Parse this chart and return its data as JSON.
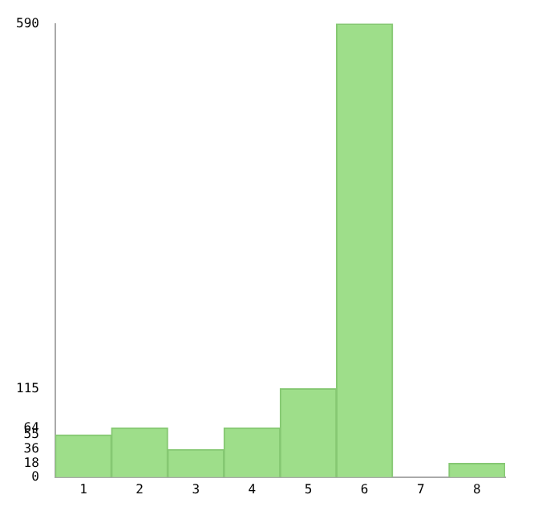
{
  "chart_data": {
    "type": "bar",
    "categories": [
      "1",
      "2",
      "3",
      "4",
      "5",
      "6",
      "7",
      "8"
    ],
    "values": [
      55,
      64,
      36,
      64,
      115,
      590,
      0,
      18
    ],
    "color": "#9ede8a",
    "ylim": [
      0,
      590
    ],
    "yticks": [
      0,
      18,
      36,
      55,
      64,
      115,
      590
    ],
    "grid": false,
    "legend": false
  }
}
